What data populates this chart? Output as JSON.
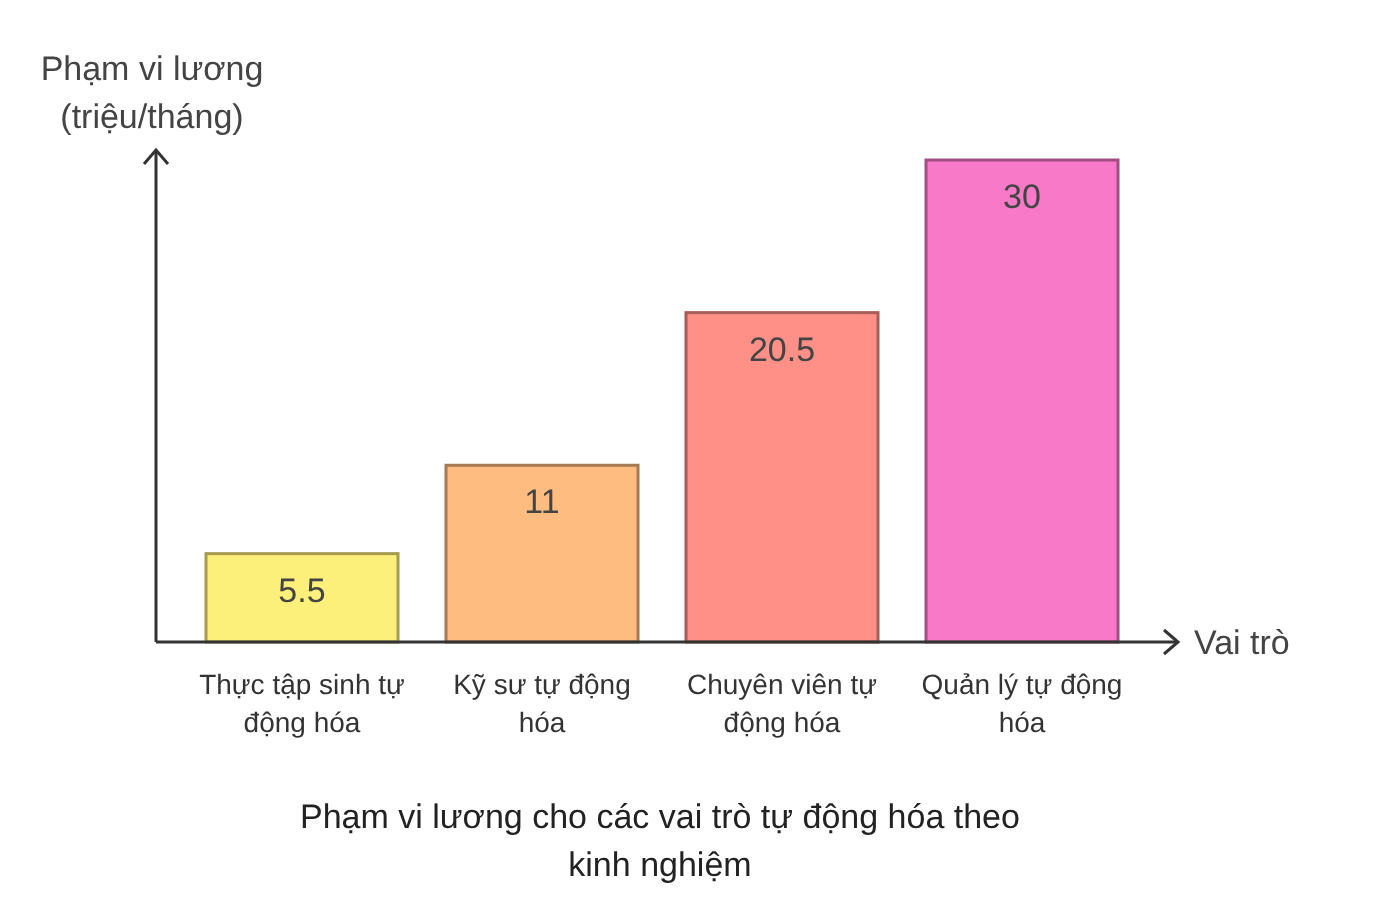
{
  "chart_data": {
    "type": "bar",
    "title": "Phạm vi lương cho các vai trò tự động hóa theo kinh nghiệm",
    "xlabel": "Vai trò",
    "ylabel": "Phạm vi lương (triệu/tháng)",
    "categories": [
      "Thực tập sinh tự động hóa",
      "Kỹ sư tự động hóa",
      "Chuyên viên tự động hóa",
      "Quản lý tự động hóa"
    ],
    "values": [
      5.5,
      11,
      20.5,
      30
    ],
    "colors": [
      "#fdf07a",
      "#ffbc80",
      "#ff9088",
      "#f779c8"
    ],
    "data_labels": true
  }
}
